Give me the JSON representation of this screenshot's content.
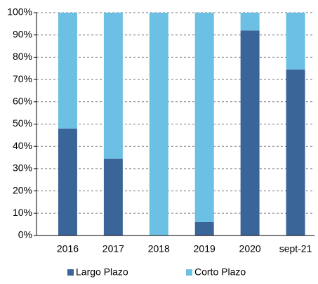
{
  "chart_data": {
    "type": "stacked_bar",
    "categories": [
      "2016",
      "2017",
      "2018",
      "2019",
      "2020",
      "sept-21"
    ],
    "series": [
      {
        "name": "Largo Plazo",
        "color": "#3a6598",
        "values": [
          48,
          34.5,
          0,
          6,
          92,
          74.5
        ]
      },
      {
        "name": "Corto Plazo",
        "color": "#6cc0e4",
        "values": [
          52,
          65.5,
          100,
          94,
          8,
          25.5
        ]
      }
    ],
    "ylim": [
      0,
      100
    ],
    "yticks": [
      {
        "value": 0,
        "label": "0%"
      },
      {
        "value": 10,
        "label": "10%"
      },
      {
        "value": 20,
        "label": "20%"
      },
      {
        "value": 30,
        "label": "30%"
      },
      {
        "value": 40,
        "label": "40%"
      },
      {
        "value": 50,
        "label": "50%"
      },
      {
        "value": 60,
        "label": "60%"
      },
      {
        "value": 70,
        "label": "70%"
      },
      {
        "value": 80,
        "label": "80%"
      },
      {
        "value": 90,
        "label": "90%"
      },
      {
        "value": 100,
        "label": "100%"
      }
    ],
    "grid": true,
    "legend": "bottom"
  }
}
